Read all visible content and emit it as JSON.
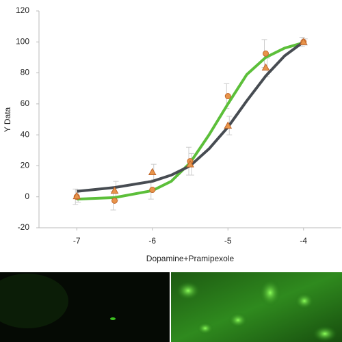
{
  "chart_data": {
    "type": "scatter",
    "x_label": "Dopamine+Pramipexole",
    "y_label": "Y Data",
    "x": [
      -7,
      -6.5,
      -6,
      -5.5,
      -5,
      -4.5,
      -4
    ],
    "xlim": [
      -7.5,
      -3.5
    ],
    "ylim": [
      -20,
      120
    ],
    "xticks": [
      -7,
      -6,
      -5,
      -4
    ],
    "yticks": [
      -20,
      0,
      20,
      40,
      60,
      80,
      100,
      120
    ],
    "grid": false,
    "series": [
      {
        "color": "#e8944a",
        "marker": "circle",
        "values": [
          0,
          -2.5,
          4.5,
          23,
          65,
          92.5,
          100
        ],
        "errors": [
          5,
          6,
          6,
          9,
          8,
          9,
          3
        ]
      },
      {
        "color": "#e8944a",
        "marker": "triangle",
        "values": [
          0.5,
          4,
          16,
          21,
          46,
          83.5,
          100
        ],
        "errors": [
          4,
          6,
          5,
          7,
          6,
          6,
          2
        ]
      }
    ],
    "fits": [
      {
        "color": "#5cbf3a",
        "x": [
          -7,
          -6.5,
          -6,
          -5.75,
          -5.5,
          -5.25,
          -5,
          -4.75,
          -4.5,
          -4.25,
          -4
        ],
        "values": [
          -1.5,
          -0.5,
          4,
          10,
          22,
          40,
          60,
          79,
          90,
          96,
          99.5
        ]
      },
      {
        "color": "#474c52",
        "x": [
          -7,
          -6.5,
          -6,
          -5.75,
          -5.5,
          -5.25,
          -5,
          -4.75,
          -4.5,
          -4.25,
          -4
        ],
        "values": [
          3.5,
          6,
          10,
          14,
          20,
          31,
          45,
          62,
          78,
          91,
          100
        ]
      }
    ]
  }
}
